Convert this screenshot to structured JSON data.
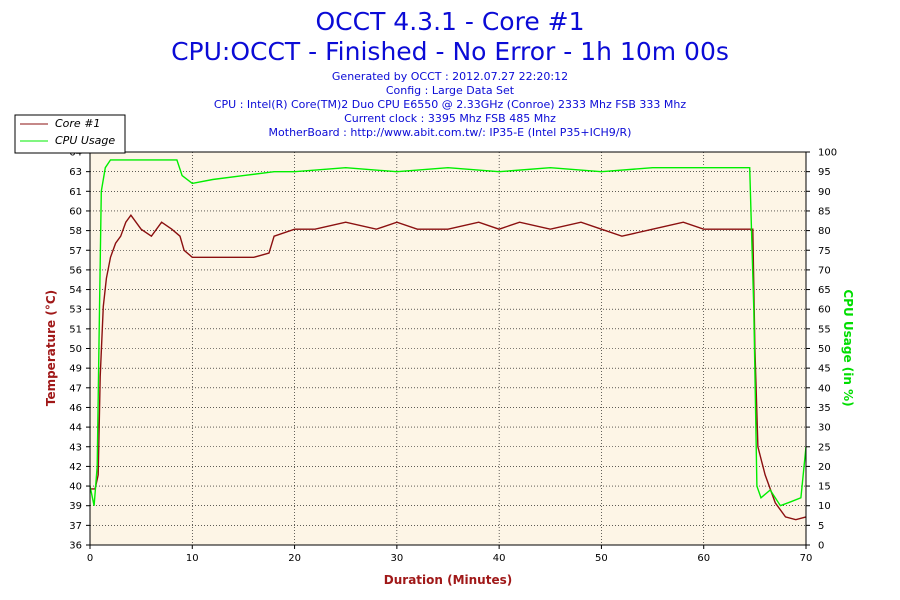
{
  "title": "OCCT 4.3.1 - Core #1",
  "subtitle": "CPU:OCCT - Finished - No Error - 1h 10m 00s",
  "info_lines": [
    "Generated by OCCT : 2012.07.27 22:20:12",
    "Config : Large Data Set",
    "CPU : Intel(R) Core(TM)2 Duo CPU E6550 @ 2.33GHz (Conroe) 2333 Mhz FSB 333 Mhz",
    "Current clock : 3395 Mhz FSB 485 Mhz",
    "MotherBoard : http://www.abit.com.tw/: IP35-E (Intel P35+ICH9/R)"
  ],
  "colors": {
    "temperature": "#8b1010",
    "cpu_usage": "#00ee00",
    "plot_background": "#fdf5e6",
    "title": "#0b0bd6",
    "axis_label_left": "#a01818",
    "axis_label_bottom": "#a01818",
    "axis_label_right": "#00dd00"
  },
  "chart_data": {
    "type": "line",
    "xlabel": "Duration (Minutes)",
    "ylabel": "Temperature (°C)",
    "y2label": "CPU Usage (in %)",
    "xlim": [
      0,
      70
    ],
    "ylim": [
      36,
      64
    ],
    "y2lim": [
      0,
      100
    ],
    "x_ticks": [
      "0",
      "10",
      "20",
      "30",
      "40",
      "50",
      "60",
      "70"
    ],
    "y_ticks": [
      "36",
      "37",
      "39",
      "40",
      "42",
      "43",
      "44",
      "46",
      "47",
      "49",
      "50",
      "51",
      "53",
      "54",
      "56",
      "57",
      "58",
      "60",
      "61",
      "63",
      "64"
    ],
    "y2_ticks": [
      "0",
      "5",
      "10",
      "15",
      "20",
      "25",
      "30",
      "35",
      "40",
      "45",
      "50",
      "55",
      "60",
      "65",
      "70",
      "75",
      "80",
      "85",
      "90",
      "95",
      "100"
    ],
    "grid": true,
    "legend": "top-left",
    "series": [
      {
        "name": "Core #1",
        "axis": "left",
        "x": [
          0,
          0.5,
          0.8,
          1.0,
          1.3,
          1.6,
          2.0,
          2.5,
          3.0,
          3.5,
          4.0,
          5.0,
          6.0,
          7.0,
          8.0,
          8.8,
          9.2,
          10.0,
          12.0,
          14.0,
          16.0,
          17.5,
          18.0,
          20.0,
          22.0,
          25.0,
          28.0,
          30.0,
          32.0,
          35.0,
          38.0,
          40.0,
          42.0,
          45.0,
          48.0,
          50.0,
          52.0,
          55.0,
          58.0,
          60.0,
          62.0,
          64.0,
          64.8,
          65.0,
          65.3,
          66.0,
          67.0,
          68.0,
          69.0,
          70.0
        ],
        "values": [
          40,
          40,
          41,
          48,
          53,
          55,
          56.5,
          57.5,
          58,
          59,
          59.5,
          58.5,
          58,
          59,
          58.5,
          58,
          57,
          56.5,
          56.5,
          56.5,
          56.5,
          56.8,
          58,
          58.5,
          58.5,
          59,
          58.5,
          59,
          58.5,
          58.5,
          59,
          58.5,
          59,
          58.5,
          59,
          58.5,
          58,
          58.5,
          59,
          58.5,
          58.5,
          58.5,
          58.5,
          50,
          43,
          41,
          39,
          38,
          37.8,
          38
        ]
      },
      {
        "name": "CPU Usage",
        "axis": "right",
        "x": [
          0,
          0.4,
          0.7,
          0.9,
          1.1,
          1.5,
          2,
          3,
          5,
          7,
          8.5,
          9,
          10,
          12,
          15,
          18,
          20,
          25,
          30,
          35,
          40,
          45,
          50,
          55,
          60,
          64.5,
          64.9,
          65.2,
          65.6,
          66.5,
          67.5,
          68.5,
          69.5,
          70
        ],
        "values": [
          15,
          10,
          20,
          55,
          90,
          96,
          98,
          98,
          98,
          98,
          98,
          94,
          92,
          93,
          94,
          95,
          95,
          96,
          95,
          96,
          95,
          96,
          95,
          96,
          96,
          96,
          60,
          15,
          12,
          14,
          10,
          11,
          12,
          25
        ]
      }
    ]
  }
}
